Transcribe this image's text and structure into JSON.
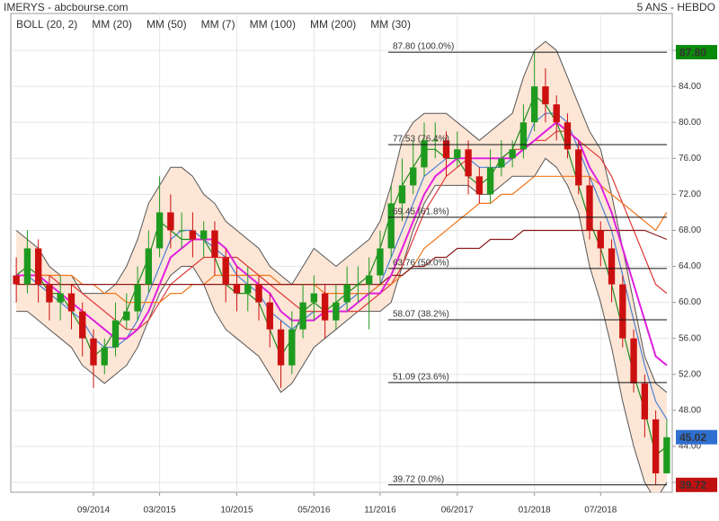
{
  "chart_data": {
    "type": "candlestick",
    "title": "IMERYS - abcbourse.com",
    "subtitle": "5 ANS - HEBDO",
    "categories": [
      null,
      null,
      null,
      null,
      null,
      null,
      null,
      "09/2014",
      null,
      null,
      null,
      null,
      null,
      "03/2015",
      null,
      null,
      null,
      null,
      null,
      null,
      "10/2015",
      null,
      null,
      null,
      null,
      null,
      null,
      "05/2016",
      null,
      null,
      null,
      null,
      null,
      "11/2016",
      null,
      null,
      null,
      null,
      null,
      null,
      "06/2017",
      null,
      null,
      null,
      null,
      null,
      null,
      "01/2018",
      null,
      null,
      null,
      null,
      null,
      "07/2018",
      null,
      null,
      null,
      null,
      null,
      null
    ],
    "open": [
      63,
      62,
      66,
      62,
      60,
      61,
      59,
      56,
      53,
      55,
      58,
      59,
      62,
      66,
      70,
      68,
      68,
      67,
      68,
      65,
      62,
      61,
      62,
      60,
      57,
      53,
      57,
      60,
      61,
      58,
      60,
      62,
      62,
      63,
      66,
      71,
      73,
      75,
      78,
      78,
      76,
      77,
      74,
      72,
      75,
      76,
      77,
      80,
      84,
      82,
      80,
      77,
      73,
      68,
      66,
      62,
      56,
      51,
      47,
      41
    ],
    "high": [
      65,
      68,
      67,
      63,
      63,
      62,
      60,
      57,
      56,
      60,
      61,
      64,
      68,
      74,
      72,
      70,
      70,
      69,
      69,
      66,
      64,
      64,
      63,
      61,
      58,
      59,
      62,
      63,
      62,
      62,
      64,
      64,
      65,
      68,
      73,
      76,
      78,
      80,
      80,
      79,
      79,
      78,
      75,
      77,
      78,
      78,
      82,
      87.8,
      86,
      83,
      81,
      78,
      74,
      69,
      67,
      63,
      57,
      52,
      48,
      47
    ],
    "low": [
      60,
      61,
      60,
      58,
      58,
      57,
      54,
      50.5,
      52,
      54,
      57,
      58,
      61,
      65,
      66,
      66,
      65,
      65,
      63,
      60,
      59,
      59,
      58,
      55,
      50.5,
      52,
      56,
      58,
      56,
      57,
      59,
      60,
      57,
      62,
      65,
      69,
      72,
      74,
      76,
      74,
      75,
      72,
      71,
      71,
      74,
      75,
      76,
      79,
      80,
      78,
      76,
      72,
      67,
      64,
      60,
      55,
      50,
      45,
      39.72,
      41
    ],
    "close": [
      62,
      66,
      62,
      60,
      61,
      59,
      56,
      53,
      55,
      58,
      59,
      62,
      66,
      70,
      68,
      68,
      67,
      68,
      65,
      62,
      61,
      62,
      60,
      57,
      53,
      57,
      60,
      61,
      58,
      60,
      62,
      62,
      63,
      66,
      71,
      73,
      75,
      78,
      78,
      76,
      77,
      74,
      72,
      75,
      76,
      77,
      80,
      84,
      82,
      80,
      77,
      73,
      68,
      66,
      62,
      56,
      51,
      47,
      41,
      45.02
    ],
    "up_color": "#1e9a1e",
    "down_color": "#cc1010",
    "bollinger": {
      "name": "BOLL (20, 2)",
      "color": "#555555",
      "fill": "#fde6d6",
      "upper": [
        68,
        67,
        66,
        64,
        63,
        63,
        61,
        61,
        61,
        62,
        64,
        67,
        71,
        73,
        75,
        75,
        74,
        72,
        71,
        69,
        68,
        67,
        66,
        64,
        63,
        62,
        64,
        66,
        65,
        64,
        65,
        66,
        67,
        69,
        73,
        78,
        80,
        81,
        81,
        81,
        80,
        79,
        78,
        79,
        80,
        81,
        85,
        88,
        89,
        88,
        85,
        82,
        79,
        77,
        72,
        66,
        60,
        54,
        51,
        50
      ],
      "lower": [
        59,
        59,
        58,
        57,
        56,
        55,
        53,
        52,
        51,
        52,
        53,
        55,
        58,
        61,
        63,
        64,
        64,
        62,
        59,
        57,
        56,
        55,
        54,
        52,
        50,
        51,
        53,
        55,
        56,
        57,
        58,
        59,
        59,
        59,
        60,
        64,
        68,
        71,
        73,
        73,
        73,
        73,
        72,
        72,
        73,
        74,
        74,
        74,
        76,
        75,
        73,
        70,
        64,
        60,
        55,
        49,
        44,
        40,
        38,
        40
      ]
    },
    "series": [
      {
        "name": "MM (20)",
        "color": "#4a7fd4",
        "values": [
          63,
          63,
          62,
          61,
          60,
          59,
          58,
          56,
          55,
          55,
          56,
          58,
          61,
          64,
          67,
          68,
          68,
          67,
          66,
          65,
          63,
          62,
          61,
          59,
          58,
          57,
          58,
          59,
          59,
          59,
          60,
          61,
          61,
          62,
          65,
          68,
          71,
          74,
          75,
          76,
          76,
          76,
          75,
          75,
          75,
          76,
          77,
          80,
          81,
          81,
          80,
          77,
          74,
          71,
          68,
          63,
          58,
          53,
          49,
          47
        ]
      },
      {
        "name": "MM (50)",
        "color": "#e03a3a",
        "values": [
          63,
          63,
          63,
          63,
          62,
          62,
          61,
          60,
          59,
          58,
          57,
          57,
          58,
          60,
          62,
          63,
          64,
          65,
          65,
          65,
          65,
          64,
          63,
          62,
          61,
          60,
          59,
          59,
          59,
          59,
          59,
          59,
          60,
          61,
          62,
          64,
          67,
          70,
          72,
          74,
          75,
          76,
          76,
          76,
          76,
          77,
          77,
          78,
          78,
          79,
          79,
          78,
          77,
          76,
          74,
          71,
          68,
          65,
          62,
          61
        ]
      },
      {
        "name": "MM (7)",
        "color": "#1e8c1e",
        "values": [
          63,
          64,
          63,
          61,
          61,
          59,
          57,
          54,
          55,
          57,
          59,
          62,
          65,
          69,
          68,
          67,
          67,
          67,
          65,
          62,
          61,
          61,
          60,
          57,
          54,
          56,
          59,
          60,
          59,
          60,
          61,
          62,
          63,
          66,
          70,
          73,
          75,
          77,
          77,
          76,
          76,
          74,
          73,
          74,
          76,
          77,
          80,
          83,
          82,
          80,
          77,
          73,
          69,
          66,
          62,
          57,
          52,
          48,
          43,
          44
        ]
      },
      {
        "name": "MM (100)",
        "color": "#f07820",
        "values": [
          63,
          63,
          63,
          63,
          63,
          63,
          62,
          62,
          61,
          61,
          60,
          60,
          60,
          60,
          61,
          61,
          62,
          62,
          63,
          63,
          63,
          63,
          63,
          63,
          62,
          62,
          62,
          62,
          61,
          61,
          61,
          61,
          61,
          62,
          62,
          63,
          64,
          66,
          67,
          68,
          69,
          70,
          71,
          71,
          72,
          72,
          73,
          74,
          74,
          74,
          74,
          74,
          74,
          73,
          72,
          71,
          70,
          69,
          68,
          70
        ]
      },
      {
        "name": "MM (200)",
        "color": "#8b1a1a",
        "values": [
          62,
          62,
          62,
          62,
          62,
          62,
          62,
          62,
          62,
          62,
          62,
          62,
          62,
          62,
          62,
          62,
          62,
          62,
          62,
          62,
          62,
          62,
          62,
          62,
          62,
          62,
          62,
          62,
          62,
          62,
          62,
          62,
          62,
          62,
          63,
          63,
          64,
          64,
          65,
          65,
          66,
          66,
          66,
          67,
          67,
          67,
          68,
          68,
          68,
          68,
          68,
          68,
          68,
          68,
          68,
          68,
          68,
          68,
          67.5,
          67
        ]
      },
      {
        "name": "MM (30)",
        "color": "#e020e0",
        "values": [
          63,
          63,
          63,
          62,
          61,
          60,
          59,
          58,
          57,
          56,
          56,
          57,
          59,
          62,
          65,
          66,
          67,
          67,
          67,
          66,
          64,
          63,
          62,
          61,
          59,
          58,
          58,
          58,
          59,
          59,
          59,
          60,
          61,
          61,
          63,
          66,
          69,
          72,
          74,
          75,
          76,
          76,
          76,
          76,
          76,
          76,
          77,
          78,
          79,
          80,
          79,
          78,
          75,
          73,
          70,
          66,
          62,
          58,
          54,
          53
        ]
      }
    ],
    "fib_levels": [
      {
        "value": 87.8,
        "label": "87.80 (100.0%)"
      },
      {
        "value": 77.53,
        "label": "77.53 (76.4%)"
      },
      {
        "value": 69.45,
        "label": "69.45 (61.8%)"
      },
      {
        "value": 63.76,
        "label": "63.76 (50.0%)"
      },
      {
        "value": 58.07,
        "label": "58.07 (38.2%)"
      },
      {
        "value": 51.09,
        "label": "51.09 (23.6%)"
      },
      {
        "value": 39.72,
        "label": "39.72 (0.0%)"
      }
    ],
    "price_markers": [
      {
        "value": 87.8,
        "label": "87.80",
        "color": "#0a8a0a"
      },
      {
        "value": 45.02,
        "label": "45.02",
        "color": "#2f6fd0"
      },
      {
        "value": 39.72,
        "label": "39.72",
        "color": "#c01010"
      }
    ],
    "ylim": [
      38.9,
      92.1
    ],
    "yticks": [
      {
        "value": 40,
        "label": "40.00"
      },
      {
        "value": 44,
        "label": "44.00"
      },
      {
        "value": 48,
        "label": "48.00"
      },
      {
        "value": 52,
        "label": "52.00"
      },
      {
        "value": 56,
        "label": "56.00"
      },
      {
        "value": 60,
        "label": "60.00"
      },
      {
        "value": 64,
        "label": "64.00"
      },
      {
        "value": 68,
        "label": "68.00"
      },
      {
        "value": 72,
        "label": "72.00"
      },
      {
        "value": 76,
        "label": "76.00"
      },
      {
        "value": 80,
        "label": "80.00"
      },
      {
        "value": 84,
        "label": "84.00"
      },
      {
        "value": 88,
        "label": "88.00"
      }
    ],
    "grid": true
  }
}
